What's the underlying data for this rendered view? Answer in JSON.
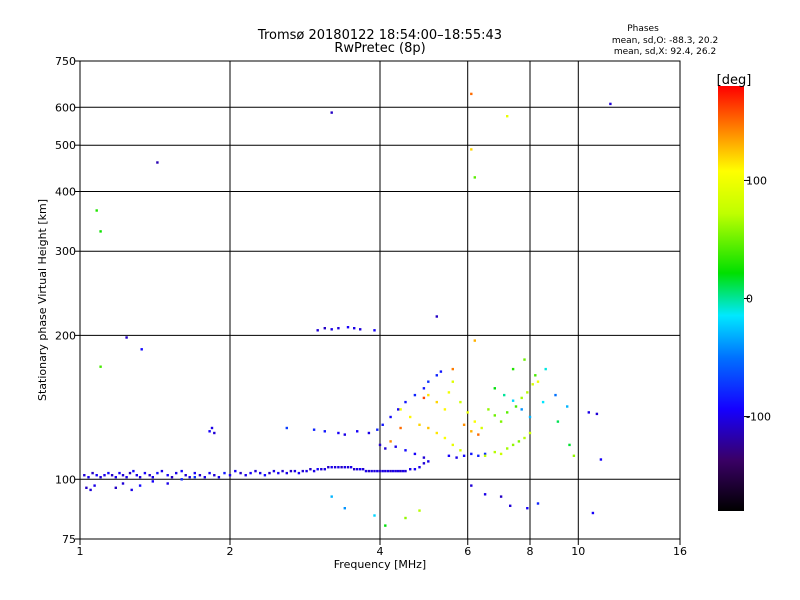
{
  "chart_data": {
    "type": "scatter",
    "title": "Tromsø 20180122 18:54:00–18:55:43",
    "subtitle": "RwPretec (8p)",
    "stats": {
      "heading": "Phases",
      "line1": "mean, sd,O: -88.3, 20.2",
      "line2": "mean, sd,X:  92.4, 26.2"
    },
    "xlabel": "Frequency [MHz]",
    "ylabel": "Stationary phase Virtual Height [km]",
    "x_scale": "log",
    "y_scale": "log",
    "xlim": [
      1,
      16
    ],
    "ylim": [
      75,
      750
    ],
    "xticks": [
      1,
      2,
      4,
      6,
      8,
      10,
      16
    ],
    "xtick_labels": [
      "1",
      "2",
      "4",
      "6",
      "8",
      "10",
      "16"
    ],
    "yticks": [
      75,
      100,
      200,
      300,
      400,
      500,
      600,
      750
    ],
    "ytick_labels": [
      "75",
      "100",
      "200",
      "300",
      "400",
      "500",
      "600",
      "750"
    ],
    "grid": true,
    "colorbar": {
      "label": "[deg]",
      "range": [
        -180,
        180
      ],
      "ticks": [
        100,
        0,
        -100
      ],
      "tick_labels": [
        "100",
        "0",
        "-100"
      ]
    },
    "series": [
      {
        "points": [
          [
            1.02,
            102,
            -105
          ],
          [
            1.04,
            101,
            -100
          ],
          [
            1.06,
            103,
            -110
          ],
          [
            1.08,
            102,
            -95
          ],
          [
            1.1,
            101,
            -105
          ],
          [
            1.12,
            102,
            -100
          ],
          [
            1.14,
            103,
            -90
          ],
          [
            1.16,
            102,
            -110
          ],
          [
            1.18,
            101,
            -100
          ],
          [
            1.2,
            103,
            -95
          ],
          [
            1.22,
            102,
            -105
          ],
          [
            1.24,
            101,
            -100
          ],
          [
            1.26,
            103,
            -110
          ],
          [
            1.28,
            104,
            -90
          ],
          [
            1.3,
            102,
            -100
          ],
          [
            1.32,
            101,
            -105
          ],
          [
            1.35,
            103,
            -95
          ],
          [
            1.38,
            102,
            -110
          ],
          [
            1.4,
            101,
            -100
          ],
          [
            1.43,
            103,
            -88
          ],
          [
            1.46,
            104,
            -100
          ],
          [
            1.5,
            102,
            -95
          ],
          [
            1.53,
            101,
            -110
          ],
          [
            1.56,
            103,
            -100
          ],
          [
            1.6,
            104,
            -92
          ],
          [
            1.63,
            102,
            -105
          ],
          [
            1.66,
            101,
            -100
          ],
          [
            1.7,
            103,
            -95
          ],
          [
            1.74,
            102,
            -110
          ],
          [
            1.78,
            101,
            -100
          ],
          [
            1.82,
            103,
            -95
          ],
          [
            1.86,
            102,
            -105
          ],
          [
            1.9,
            101,
            -100
          ],
          [
            1.95,
            103,
            -85
          ],
          [
            2.0,
            102,
            -100
          ],
          [
            2.05,
            104,
            -95
          ],
          [
            2.1,
            103,
            -110
          ],
          [
            2.15,
            102,
            -100
          ],
          [
            2.2,
            103,
            -95
          ],
          [
            2.25,
            104,
            -105
          ],
          [
            2.3,
            103,
            -100
          ],
          [
            2.35,
            102,
            -90
          ],
          [
            2.4,
            103,
            -110
          ],
          [
            2.45,
            104,
            -100
          ],
          [
            2.5,
            103,
            -95
          ],
          [
            2.55,
            104,
            -105
          ],
          [
            2.6,
            103,
            -100
          ],
          [
            2.65,
            104,
            -110
          ],
          [
            2.7,
            104,
            -100
          ],
          [
            2.75,
            103,
            -95
          ],
          [
            2.8,
            104,
            -105
          ],
          [
            2.85,
            104,
            -100
          ],
          [
            2.9,
            105,
            -110
          ],
          [
            2.95,
            104,
            -100
          ],
          [
            3.0,
            105,
            -95
          ],
          [
            3.05,
            105,
            -105
          ],
          [
            3.1,
            105,
            -100
          ],
          [
            3.15,
            106,
            -110
          ],
          [
            3.2,
            106,
            -100
          ],
          [
            3.25,
            106,
            -105
          ],
          [
            3.3,
            106,
            -100
          ],
          [
            3.35,
            106,
            -110
          ],
          [
            3.4,
            106,
            -100
          ],
          [
            3.45,
            106,
            -105
          ],
          [
            3.5,
            106,
            -100
          ],
          [
            3.55,
            105,
            -110
          ],
          [
            3.6,
            105,
            -100
          ],
          [
            3.65,
            105,
            -95
          ],
          [
            3.7,
            105,
            -105
          ],
          [
            3.75,
            104,
            -100
          ],
          [
            3.8,
            104,
            -110
          ],
          [
            3.85,
            104,
            -100
          ],
          [
            3.9,
            104,
            -105
          ],
          [
            3.95,
            104,
            -100
          ],
          [
            4.0,
            104,
            -110
          ],
          [
            4.05,
            104,
            -100
          ],
          [
            4.1,
            104,
            -105
          ],
          [
            4.15,
            104,
            -100
          ],
          [
            4.2,
            104,
            -110
          ],
          [
            4.25,
            104,
            -100
          ],
          [
            4.3,
            104,
            -105
          ],
          [
            4.35,
            104,
            -100
          ],
          [
            4.4,
            104,
            -110
          ],
          [
            4.45,
            104,
            -100
          ],
          [
            4.5,
            104,
            -105
          ],
          [
            4.6,
            105,
            -100
          ],
          [
            4.7,
            105,
            -95
          ],
          [
            4.8,
            106,
            -100
          ],
          [
            4.9,
            108,
            -105
          ],
          [
            5.0,
            109,
            -100
          ],
          [
            1.03,
            96,
            -110
          ],
          [
            1.05,
            95,
            -105
          ],
          [
            1.07,
            97,
            -100
          ],
          [
            1.18,
            96,
            -110
          ],
          [
            1.22,
            98,
            -105
          ],
          [
            1.27,
            95,
            -100
          ],
          [
            1.32,
            97,
            -90
          ],
          [
            1.4,
            99,
            -95
          ],
          [
            1.5,
            98,
            -100
          ],
          [
            1.6,
            100,
            -80
          ],
          [
            1.7,
            101,
            -75
          ],
          [
            1.82,
            126,
            -95
          ],
          [
            1.84,
            128,
            -100
          ],
          [
            1.86,
            125,
            -105
          ],
          [
            2.6,
            128,
            -70
          ],
          [
            2.95,
            127,
            -80
          ],
          [
            3.1,
            126,
            -85
          ],
          [
            3.3,
            125,
            -95
          ],
          [
            3.4,
            124,
            -100
          ],
          [
            3.6,
            126,
            -95
          ],
          [
            3.8,
            125,
            -100
          ],
          [
            3.95,
            127,
            -80
          ],
          [
            4.05,
            130,
            -85
          ],
          [
            4.2,
            135,
            -90
          ],
          [
            4.35,
            140,
            -95
          ],
          [
            4.5,
            145,
            -85
          ],
          [
            4.7,
            150,
            -80
          ],
          [
            4.9,
            155,
            -85
          ],
          [
            5.0,
            160,
            -75
          ],
          [
            5.2,
            165,
            -80
          ],
          [
            5.3,
            168,
            -85
          ],
          [
            4.0,
            118,
            -110
          ],
          [
            4.1,
            116,
            -105
          ],
          [
            4.3,
            117,
            -100
          ],
          [
            4.5,
            115,
            -90
          ],
          [
            4.7,
            113,
            -95
          ],
          [
            4.9,
            111,
            -105
          ],
          [
            5.5,
            112,
            -95
          ],
          [
            5.7,
            111,
            -100
          ],
          [
            5.9,
            112,
            -90
          ],
          [
            6.1,
            113,
            -85
          ],
          [
            6.3,
            112,
            -80
          ],
          [
            6.5,
            113,
            -75
          ],
          [
            3.0,
            205,
            -105
          ],
          [
            3.1,
            207,
            -110
          ],
          [
            3.2,
            206,
            -100
          ],
          [
            3.3,
            207,
            -105
          ],
          [
            3.45,
            208,
            -95
          ],
          [
            3.55,
            207,
            -100
          ],
          [
            3.65,
            206,
            -105
          ],
          [
            3.9,
            205,
            -95
          ],
          [
            5.2,
            219,
            -110
          ],
          [
            3.2,
            585,
            -110
          ],
          [
            1.43,
            460,
            -115
          ],
          [
            1.24,
            198,
            -110
          ],
          [
            1.33,
            187,
            -90
          ],
          [
            11.6,
            610,
            -105
          ],
          [
            6.1,
            97,
            -105
          ],
          [
            6.5,
            93,
            -100
          ],
          [
            7.0,
            92,
            -110
          ],
          [
            7.3,
            88,
            -105
          ],
          [
            7.9,
            87,
            -95
          ],
          [
            8.3,
            89,
            -80
          ],
          [
            10.7,
            85,
            -95
          ],
          [
            10.5,
            138,
            -100
          ],
          [
            10.9,
            137,
            -105
          ],
          [
            11.1,
            110,
            -95
          ],
          [
            1.1,
            172,
            40
          ],
          [
            1.08,
            365,
            30
          ],
          [
            1.1,
            330,
            25
          ],
          [
            6.2,
            428,
            45
          ],
          [
            6.1,
            490,
            120
          ],
          [
            6.1,
            640,
            150
          ],
          [
            7.2,
            575,
            95
          ],
          [
            6.2,
            195,
            130
          ],
          [
            3.4,
            87,
            -40
          ],
          [
            3.2,
            92,
            -30
          ],
          [
            4.1,
            80,
            20
          ],
          [
            3.9,
            84,
            -20
          ],
          [
            4.5,
            83,
            60
          ],
          [
            4.8,
            86,
            70
          ],
          [
            5.0,
            150,
            115
          ],
          [
            5.2,
            145,
            120
          ],
          [
            5.4,
            140,
            110
          ],
          [
            5.5,
            152,
            100
          ],
          [
            5.6,
            160,
            90
          ],
          [
            5.8,
            145,
            80
          ],
          [
            6.0,
            138,
            95
          ],
          [
            6.2,
            132,
            105
          ],
          [
            6.4,
            128,
            85
          ],
          [
            4.4,
            140,
            100
          ],
          [
            4.6,
            135,
            110
          ],
          [
            4.8,
            130,
            120
          ],
          [
            5.0,
            128,
            125
          ],
          [
            5.2,
            125,
            115
          ],
          [
            5.4,
            122,
            105
          ],
          [
            5.6,
            118,
            95
          ],
          [
            5.8,
            115,
            85
          ],
          [
            6.5,
            112,
            75
          ],
          [
            6.8,
            114,
            70
          ],
          [
            7.0,
            113,
            80
          ],
          [
            7.2,
            116,
            65
          ],
          [
            7.4,
            118,
            60
          ],
          [
            7.6,
            120,
            55
          ],
          [
            7.8,
            122,
            70
          ],
          [
            8.0,
            125,
            80
          ],
          [
            6.6,
            140,
            60
          ],
          [
            6.8,
            136,
            50
          ],
          [
            7.0,
            132,
            55
          ],
          [
            7.2,
            138,
            45
          ],
          [
            7.5,
            142,
            40
          ],
          [
            7.7,
            148,
            65
          ],
          [
            7.9,
            152,
            70
          ],
          [
            8.1,
            158,
            85
          ],
          [
            8.3,
            160,
            100
          ],
          [
            5.9,
            130,
            140
          ],
          [
            6.1,
            126,
            130
          ],
          [
            6.3,
            124,
            150
          ],
          [
            5.6,
            170,
            145
          ],
          [
            4.9,
            148,
            160
          ],
          [
            4.4,
            128,
            150
          ],
          [
            4.2,
            120,
            140
          ],
          [
            6.8,
            155,
            20
          ],
          [
            7.1,
            150,
            0
          ],
          [
            7.4,
            146,
            -20
          ],
          [
            7.7,
            140,
            -40
          ],
          [
            8.0,
            135,
            -30
          ],
          [
            8.5,
            145,
            -15
          ],
          [
            9.0,
            150,
            -50
          ],
          [
            9.5,
            142,
            -30
          ],
          [
            7.4,
            170,
            30
          ],
          [
            7.8,
            178,
            50
          ],
          [
            8.2,
            165,
            40
          ],
          [
            8.6,
            170,
            -10
          ],
          [
            9.1,
            132,
            10
          ],
          [
            9.6,
            118,
            15
          ],
          [
            9.8,
            112,
            60
          ]
        ]
      }
    ]
  }
}
